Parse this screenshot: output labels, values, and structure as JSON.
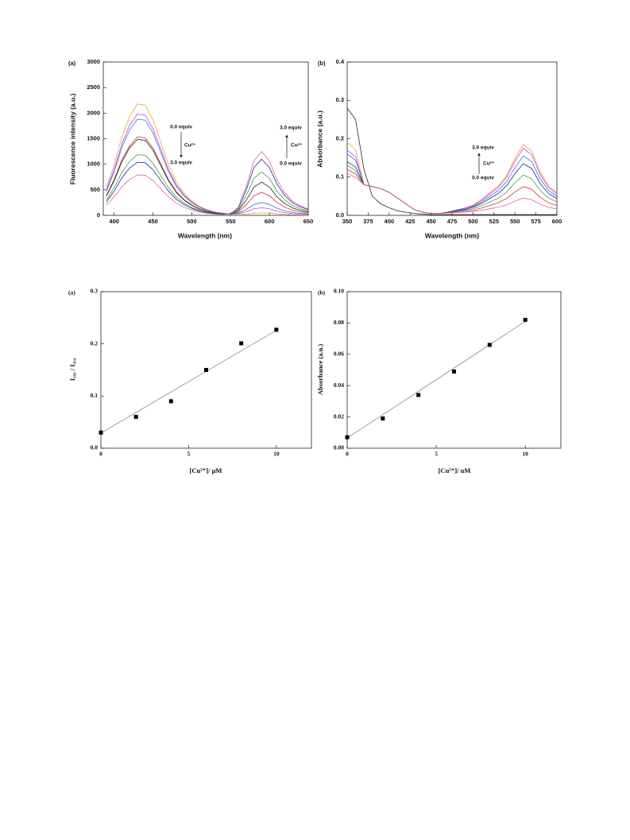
{
  "chart_data": [
    {
      "type": "line",
      "panel_label": "(a)",
      "xlabel": "Wavelength (nm)",
      "ylabel": "Fluorescence intensity (a.u.)",
      "x": [
        390,
        400,
        410,
        420,
        430,
        440,
        450,
        460,
        470,
        480,
        490,
        500,
        510,
        520,
        530,
        540,
        550,
        560,
        570,
        580,
        590,
        600,
        610,
        620,
        630,
        640,
        650
      ],
      "xlim": [
        386,
        650
      ],
      "xticks": [
        400,
        450,
        500,
        550,
        600,
        650
      ],
      "ylim": [
        0,
        3000
      ],
      "yticks": [
        0,
        500,
        1000,
        1500,
        2000,
        2500,
        3000
      ],
      "annotations": [
        "0.0 equiv",
        "Cu²⁺",
        "3.0 equiv",
        "3.0 equiv",
        "Cu²⁺",
        "0.0 equiv"
      ],
      "series": [
        {
          "color": "#e8a33a",
          "values": [
            550,
            990,
            1540,
            1936,
            2178,
            2156,
            1870,
            1430,
            990,
            660,
            440,
            286,
            176,
            110,
            66,
            44,
            23,
            28,
            22,
            42,
            50,
            42,
            28,
            18,
            11,
            8,
            5
          ]
        },
        {
          "color": "#d040d8",
          "values": [
            500,
            900,
            1400,
            1760,
            1980,
            1960,
            1700,
            1300,
            900,
            600,
            400,
            260,
            160,
            100,
            60,
            40,
            23,
            38,
            68,
            128,
            150,
            128,
            83,
            53,
            33,
            23,
            15
          ]
        },
        {
          "color": "#3a6fe0",
          "values": [
            475,
            855,
            1330,
            1672,
            1881,
            1862,
            1615,
            1235,
            855,
            570,
            380,
            247,
            152,
            95,
            57,
            38,
            24,
            49,
            113,
            213,
            250,
            213,
            138,
            88,
            55,
            38,
            25
          ]
        },
        {
          "color": "#d03030",
          "values": [
            388,
            698,
            1085,
            1364,
            1535,
            1519,
            1318,
            1008,
            698,
            465,
            310,
            202,
            124,
            78,
            47,
            31,
            25,
            70,
            203,
            383,
            450,
            383,
            248,
            158,
            99,
            68,
            45
          ]
        },
        {
          "color": "#222222",
          "values": [
            375,
            675,
            1050,
            1320,
            1485,
            1470,
            1275,
            975,
            675,
            450,
            300,
            195,
            120,
            75,
            45,
            30,
            28,
            93,
            293,
            553,
            650,
            553,
            358,
            228,
            143,
            98,
            65
          ]
        },
        {
          "color": "#40a040",
          "values": [
            300,
            540,
            840,
            1056,
            1188,
            1176,
            1020,
            780,
            540,
            360,
            240,
            156,
            96,
            60,
            36,
            24,
            29,
            114,
            383,
            723,
            850,
            723,
            468,
            298,
            187,
            128,
            85
          ]
        },
        {
          "color": "#2020a0",
          "values": [
            263,
            473,
            735,
            924,
            1040,
            1029,
            893,
            683,
            473,
            315,
            210,
            137,
            84,
            53,
            32,
            21,
            33,
            143,
            495,
            935,
            1100,
            935,
            605,
            385,
            242,
            165,
            110
          ]
        },
        {
          "color": "#e060a0",
          "values": [
            200,
            360,
            560,
            704,
            792,
            784,
            680,
            520,
            360,
            240,
            160,
            104,
            64,
            40,
            24,
            16,
            33,
            158,
            563,
            1063,
            1250,
            1063,
            688,
            438,
            275,
            188,
            125
          ]
        }
      ]
    },
    {
      "type": "line",
      "panel_label": "(b)",
      "xlabel": "Wavelength (nm)",
      "ylabel": "Absorbance (a.u.)",
      "x": [
        350,
        360,
        370,
        380,
        390,
        400,
        410,
        420,
        430,
        440,
        450,
        460,
        470,
        480,
        490,
        500,
        510,
        520,
        530,
        540,
        550,
        560,
        570,
        580,
        590,
        600
      ],
      "xlim": [
        350,
        600
      ],
      "xticks": [
        350,
        375,
        400,
        425,
        450,
        475,
        500,
        525,
        550,
        575,
        600
      ],
      "ylim": [
        0,
        0.4
      ],
      "yticks": [
        {
          "value": 0,
          "label": "0.0"
        },
        0.1,
        0.2,
        0.3,
        0.4
      ],
      "annotations": [
        "3.0 equiv",
        "Cu²⁺",
        "0.0 equiv"
      ],
      "series": [
        {
          "color": "#222222",
          "values": [
            0.28,
            0.25,
            0.12,
            0.05,
            0.03,
            0.02,
            0.012,
            0.008,
            0.005,
            0.003,
            0.002,
            0.002,
            0.002,
            0.002,
            0.002,
            0.002,
            0.002,
            0.002,
            0.002,
            0.002,
            0.002,
            0.002,
            0.002,
            0.002,
            0.002,
            0.002
          ]
        },
        {
          "color": "#e8a33a",
          "values": [
            0.19,
            0.171,
            0.08,
            0.075,
            0.07,
            0.06,
            0.045,
            0.03,
            0.015,
            0.008,
            0.005,
            0.005,
            0.009,
            0.014,
            0.019,
            0.027,
            0.041,
            0.059,
            0.077,
            0.104,
            0.149,
            0.185,
            0.167,
            0.113,
            0.077,
            0.059
          ]
        },
        {
          "color": "#d040d8",
          "values": [
            0.17,
            0.153,
            0.08,
            0.075,
            0.07,
            0.06,
            0.045,
            0.03,
            0.015,
            0.008,
            0.005,
            0.005,
            0.008,
            0.014,
            0.019,
            0.025,
            0.039,
            0.056,
            0.073,
            0.099,
            0.141,
            0.175,
            0.158,
            0.107,
            0.073,
            0.056
          ]
        },
        {
          "color": "#3a6fe0",
          "values": [
            0.16,
            0.144,
            0.08,
            0.075,
            0.07,
            0.06,
            0.045,
            0.03,
            0.015,
            0.008,
            0.005,
            0.005,
            0.008,
            0.013,
            0.017,
            0.023,
            0.035,
            0.05,
            0.065,
            0.088,
            0.125,
            0.155,
            0.14,
            0.095,
            0.065,
            0.05
          ]
        },
        {
          "color": "#2020a0",
          "values": [
            0.14,
            0.126,
            0.08,
            0.075,
            0.07,
            0.06,
            0.045,
            0.03,
            0.015,
            0.008,
            0.005,
            0.005,
            0.008,
            0.012,
            0.015,
            0.021,
            0.031,
            0.044,
            0.057,
            0.077,
            0.109,
            0.135,
            0.122,
            0.083,
            0.057,
            0.044
          ]
        },
        {
          "color": "#40a040",
          "values": [
            0.13,
            0.117,
            0.08,
            0.075,
            0.07,
            0.06,
            0.045,
            0.03,
            0.015,
            0.008,
            0.005,
            0.005,
            0.007,
            0.01,
            0.013,
            0.017,
            0.025,
            0.035,
            0.045,
            0.06,
            0.085,
            0.105,
            0.095,
            0.065,
            0.045,
            0.035
          ]
        },
        {
          "color": "#d03030",
          "values": [
            0.12,
            0.108,
            0.08,
            0.075,
            0.07,
            0.06,
            0.045,
            0.03,
            0.015,
            0.008,
            0.005,
            0.005,
            0.006,
            0.009,
            0.011,
            0.013,
            0.019,
            0.026,
            0.033,
            0.044,
            0.061,
            0.075,
            0.068,
            0.047,
            0.033,
            0.026
          ]
        },
        {
          "color": "#e060a0",
          "values": [
            0.11,
            0.099,
            0.08,
            0.075,
            0.07,
            0.06,
            0.045,
            0.03,
            0.015,
            0.008,
            0.005,
            0.005,
            0.006,
            0.007,
            0.008,
            0.01,
            0.013,
            0.017,
            0.021,
            0.027,
            0.037,
            0.045,
            0.041,
            0.029,
            0.021,
            0.017
          ]
        }
      ]
    },
    {
      "type": "scatter",
      "panel_label": "(a)",
      "xlabel": "[Cu²⁺]/ μM",
      "ylabel": "I₅₉₁ / I₄₃₄",
      "x": [
        0,
        2,
        4,
        6,
        8,
        10
      ],
      "values": [
        0.03,
        0.06,
        0.09,
        0.15,
        0.201,
        0.227
      ],
      "color": "#000000",
      "fit_line": {
        "x": [
          0,
          10
        ],
        "values": [
          0.029,
          0.226
        ],
        "color": "#888888"
      },
      "xlim": [
        0,
        12
      ],
      "xticks": [
        0,
        5,
        10
      ],
      "ylim": [
        0,
        0.3
      ],
      "yticks": [
        {
          "value": 0,
          "label": "0.0"
        },
        0.1,
        0.2,
        0.3
      ]
    },
    {
      "type": "scatter",
      "panel_label": "(b)",
      "xlabel": "[Cu²⁺]/ uM",
      "ylabel": "Absorbance (a.u.)",
      "x": [
        0,
        2,
        4,
        6,
        8,
        10
      ],
      "values": [
        0.007,
        0.019,
        0.034,
        0.049,
        0.066,
        0.082
      ],
      "color": "#000000",
      "fit_line": {
        "x": [
          0,
          10
        ],
        "values": [
          0.0065,
          0.081
        ],
        "color": "#888888"
      },
      "xlim": [
        0,
        12
      ],
      "xticks": [
        0,
        5,
        10
      ],
      "ylim": [
        0,
        0.1
      ],
      "yticks": [
        {
          "value": 0,
          "label": "0.00"
        },
        0.02,
        0.04,
        0.06,
        0.08,
        {
          "value": 0.1,
          "label": "0.10"
        }
      ]
    }
  ]
}
